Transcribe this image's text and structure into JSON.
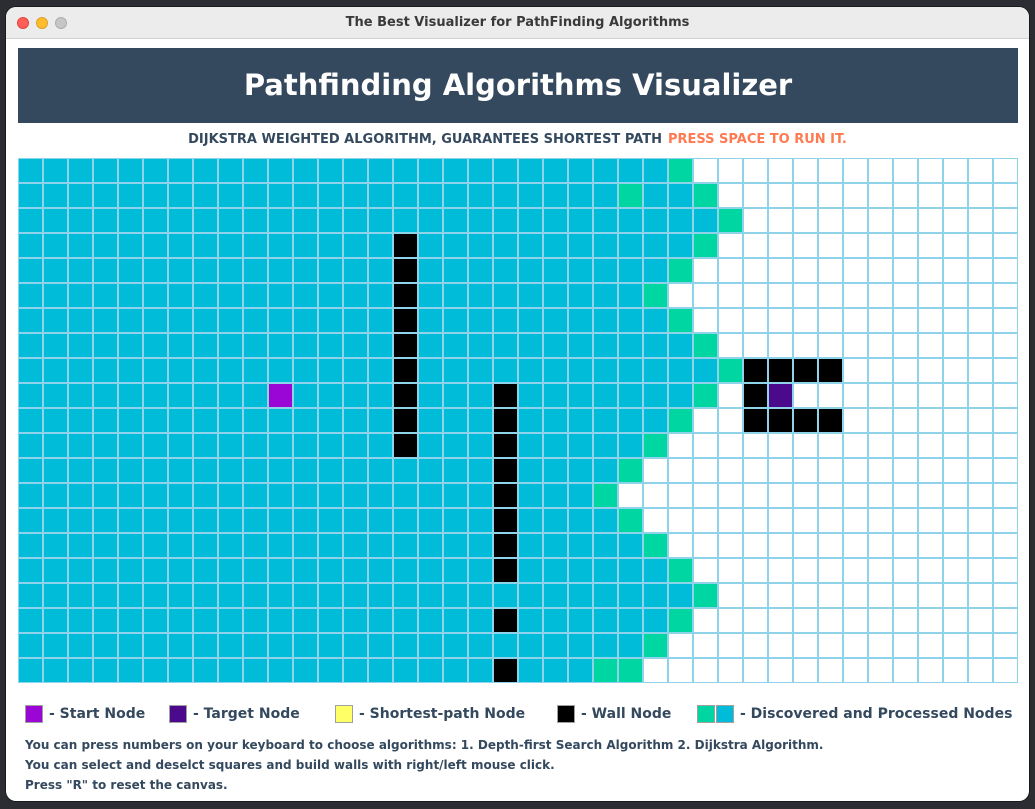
{
  "window": {
    "title": "The Best Visualizer for PathFinding Algorithms"
  },
  "header": {
    "title": "Pathfinding Algorithms Visualizer"
  },
  "algorithm": {
    "description": "DIJKSTRA WEIGHTED ALGORITHM, GUARANTEES SHORTEST PATH",
    "hint": "PRESS SPACE TO RUN IT."
  },
  "colors": {
    "processed": "#00bcd9",
    "discovered": "#00d6a2",
    "empty": "#ffffff",
    "wall": "#000000",
    "start": "#9a06d6",
    "target": "#4b0a8c",
    "shortest_path": "#ffff66",
    "grid_line": "#8fd3ea",
    "header_bg": "#34495e",
    "hint": "#ff7a50"
  },
  "grid": {
    "cols": 40,
    "rows": 21,
    "frontier": [
      26,
      27,
      28,
      27,
      26,
      25,
      26,
      27,
      28,
      27,
      26,
      25,
      24,
      23,
      24,
      25,
      26,
      27,
      26,
      25,
      23
    ],
    "discovered_extra": [
      [
        1,
        24
      ],
      [
        20,
        24
      ]
    ],
    "walls": [
      [
        3,
        15
      ],
      [
        4,
        15
      ],
      [
        5,
        15
      ],
      [
        6,
        15
      ],
      [
        7,
        15
      ],
      [
        8,
        15
      ],
      [
        9,
        15
      ],
      [
        10,
        15
      ],
      [
        11,
        15
      ],
      [
        9,
        19
      ],
      [
        10,
        19
      ],
      [
        11,
        19
      ],
      [
        12,
        19
      ],
      [
        13,
        19
      ],
      [
        14,
        19
      ],
      [
        15,
        19
      ],
      [
        16,
        19
      ],
      [
        18,
        19
      ],
      [
        20,
        19
      ],
      [
        8,
        29
      ],
      [
        8,
        30
      ],
      [
        8,
        31
      ],
      [
        8,
        32
      ],
      [
        9,
        29
      ],
      [
        10,
        29
      ],
      [
        10,
        30
      ],
      [
        10,
        31
      ],
      [
        10,
        32
      ]
    ],
    "start": [
      9,
      10
    ],
    "target": [
      9,
      30
    ]
  },
  "legend": [
    {
      "label": "- Start Node",
      "swatches": [
        "#9a06d6"
      ]
    },
    {
      "label": "- Target Node",
      "swatches": [
        "#4b0a8c"
      ]
    },
    {
      "label": "- Shortest-path Node",
      "swatches": [
        "#ffff66"
      ]
    },
    {
      "label": "- Wall Node",
      "swatches": [
        "#000000"
      ]
    },
    {
      "label": "- Discovered and Processed Nodes",
      "swatches": [
        "#00d6a2",
        "#00bcd9"
      ]
    }
  ],
  "instructions": [
    "You can press numbers on your keyboard to choose algorithms: 1. Depth-first Search Algorithm 2. Dijkstra Algorithm.",
    "You can select and deselct squares and build walls with right/left mouse click.",
    "Press \"R\" to reset the canvas."
  ]
}
